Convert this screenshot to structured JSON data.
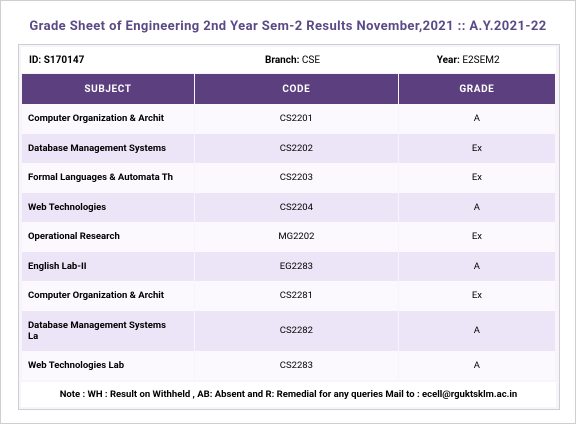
{
  "header": {
    "title": "Grade Sheet of Engineering 2nd Year Sem-2 Results November,2021 :: A.Y.2021-22"
  },
  "info": [
    {
      "label": "ID:",
      "value": "S170147"
    },
    {
      "label": "Branch:",
      "value": "CSE"
    },
    {
      "label": "Year:",
      "value": "E2SEM2"
    }
  ],
  "table": {
    "columns": [
      "SUBJECT",
      "CODE",
      "GRADE"
    ],
    "rows": [
      [
        "Computer Organization & Archit",
        "CS2201",
        "A"
      ],
      [
        "Database Management Systems",
        "CS2202",
        "Ex"
      ],
      [
        "Formal Languages & Automata Th",
        "CS2203",
        "Ex"
      ],
      [
        "Web Technologies",
        "CS2204",
        "A"
      ],
      [
        "Operational Research",
        "MG2202",
        "Ex"
      ],
      [
        "English Lab-II",
        "EG2283",
        "A"
      ],
      [
        "Computer Organization & Archit",
        "CS2281",
        "Ex"
      ],
      [
        "Database Management Systems La",
        "CS2282",
        "A"
      ],
      [
        "Web Technologies Lab",
        "CS2283",
        "A"
      ]
    ]
  },
  "note": "Note : WH : Result on Withheld , AB: Absent and R: Remedial for any queries Mail to : ecell@rguktsklm.ac.in"
}
